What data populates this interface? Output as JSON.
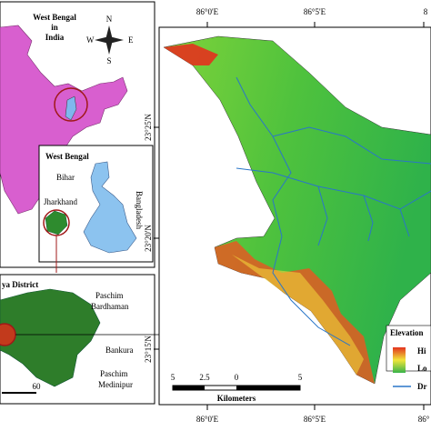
{
  "india_inset": {
    "title_lines": [
      "West Bengal",
      "in",
      "India"
    ],
    "compass": {
      "n": "N",
      "e": "E",
      "s": "S",
      "w": "W"
    }
  },
  "west_bengal_inset": {
    "title": "West Bengal",
    "labels": {
      "bihar": "Bihar",
      "jharkhand": "Jharkhand",
      "bangladesh": "Bangladesh"
    }
  },
  "district_inset": {
    "title": "ya District",
    "labels": {
      "paschim_bardhaman": [
        "Paschim",
        "Bardhaman"
      ],
      "bankura": "Bankura",
      "paschim_medinipur": [
        "Paschim",
        "Medinipur"
      ]
    },
    "scale": "60"
  },
  "map": {
    "top_ticks": [
      "86°0'E",
      "86°5'E",
      "8"
    ],
    "bottom_ticks": [
      "86°0'E",
      "86°5'E",
      "86°"
    ],
    "left_ticks": [
      "23°25'N",
      "23°20'N",
      "23°15'N"
    ],
    "scale_bar": {
      "labels": [
        "5",
        "2.5",
        "0",
        "5"
      ],
      "unit": "Kilometers"
    },
    "legend": {
      "title": "Elevation",
      "high": "Hi",
      "low": "Lo",
      "drainage": "Dr"
    }
  }
}
